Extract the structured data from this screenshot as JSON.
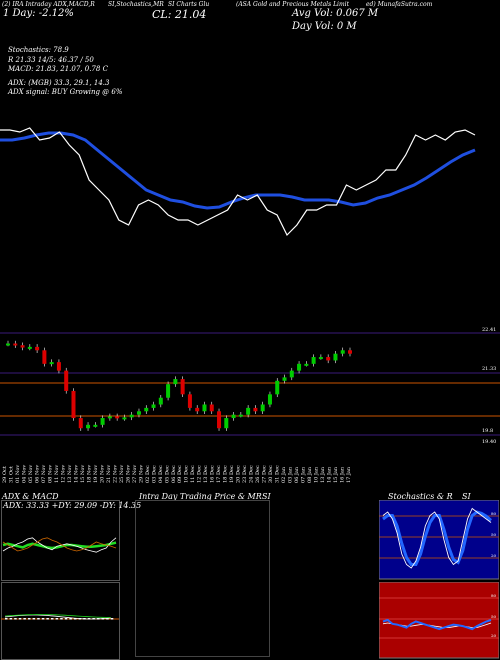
{
  "header": {
    "line1_left": "(2) IRA Intraday ADX,MACD,R",
    "line1_mid": "SI,Stochastics,MR",
    "line1_mid2": "SI Charts Glu",
    "line1_right": "(ASA Gold and Precious Metals Limit",
    "line1_far": "ed) MunafaSutra.com",
    "day_change": "1 Day: -2.12%",
    "close": "CL: 21.04",
    "avg_vol": "Avg Vol: 0.067 M",
    "day_vol": "Day Vol: 0  M"
  },
  "indicators": {
    "stoch": "Stochastics: 78.9",
    "r": "R                      21.33 14/5: 46.37 / 50",
    "macd": "MACD: 21.83, 21.07, 0.78  C",
    "adx": "ADX:                              (MGB) 33.3,  29.1,  14.3",
    "adx_signal": "ADX  signal:                                   BUY Growing @ 6%"
  },
  "price_axis": {
    "top": "22.41",
    "mid": "21.33",
    "low": "19.8",
    "bottom": "19.40"
  },
  "dates": [
    "29 Oct",
    "31 Oct",
    "01 Nov",
    "04 Nov",
    "05 Nov",
    "06 Nov",
    "07 Nov",
    "08 Nov",
    "11 Nov",
    "12 Nov",
    "13 Nov",
    "14 Nov",
    "15 Nov",
    "18 Nov",
    "19 Nov",
    "20 Nov",
    "21 Nov",
    "22 Nov",
    "25 Nov",
    "26 Nov",
    "27 Nov",
    "29 Nov",
    "02 Dec",
    "03 Dec",
    "04 Dec",
    "05 Dec",
    "06 Dec",
    "09 Dec",
    "10 Dec",
    "11 Dec",
    "12 Dec",
    "13 Dec",
    "16 Dec",
    "17 Dec",
    "18 Dec",
    "19 Dec",
    "20 Dec",
    "23 Dec",
    "24 Dec",
    "26 Dec",
    "27 Dec",
    "30 Dec",
    "31 Dec",
    "02 Jan",
    "03 Jan",
    "06 Jan",
    "07 Jan",
    "08 Jan",
    "10 Jan",
    "13 Jan",
    "14 Jan",
    "15 Jan",
    "16 Jan",
    "17 Jan"
  ],
  "panels": {
    "adx_title": "ADX  & MACD",
    "adx_values": "ADX: 33.33  +DY: 29.09 -DY: 14.35",
    "intraday_title": "Intra  Day Trading Price  & MR",
    "intraday_si": "SI",
    "stoch_title": "Stochastics  & R",
    "stoch_si": "SI",
    "stoch_levels": [
      "80",
      "50",
      "20"
    ],
    "rsi_levels": [
      "80",
      "50",
      "20"
    ]
  },
  "colors": {
    "price_line": "#ffffff",
    "ma_line": "#1f4fe0",
    "candle_up": "#00cc00",
    "candle_down": "#dd0000",
    "rsi_bg": "#aa0000",
    "stoch_bg": "#00008b"
  },
  "chart_data": [
    {
      "type": "line",
      "panel": "price_and_moving_average",
      "series": [
        {
          "values": [
            21.7,
            21.7,
            21.68,
            21.72,
            21.6,
            21.62,
            21.68,
            21.55,
            21.45,
            21.2,
            21.1,
            21.0,
            20.8,
            20.75,
            20.95,
            21.0,
            20.95,
            20.85,
            20.8,
            20.8,
            20.75,
            20.8,
            20.85,
            20.9,
            21.05,
            21.0,
            21.05,
            20.9,
            20.85,
            20.65,
            20.75,
            20.9,
            20.9,
            20.95,
            20.95,
            21.15,
            21.1,
            21.15,
            21.2,
            21.3,
            21.3,
            21.45,
            21.65,
            21.6,
            21.65,
            21.6,
            21.68,
            21.7,
            21.65
          ]
        },
        {
          "values": [
            21.6,
            21.6,
            21.62,
            21.65,
            21.67,
            21.67,
            21.65,
            21.6,
            21.5,
            21.4,
            21.3,
            21.2,
            21.1,
            21.05,
            21.0,
            20.98,
            20.94,
            20.92,
            20.93,
            20.98,
            21.02,
            21.05,
            21.05,
            21.05,
            21.03,
            21.0,
            21.0,
            21.0,
            20.98,
            20.95,
            20.97,
            21.02,
            21.05,
            21.1,
            21.15,
            21.22,
            21.3,
            21.38,
            21.45,
            21.5
          ]
        }
      ]
    },
    {
      "type": "candlestick",
      "panel": "daily_candles",
      "ylim": [
        19.4,
        22.41
      ],
      "values": [
        22.1,
        22.05,
        21.98,
        22.0,
        21.9,
        21.5,
        21.55,
        21.3,
        20.7,
        19.9,
        19.6,
        19.7,
        19.7,
        19.9,
        19.95,
        19.9,
        19.92,
        20.0,
        20.1,
        20.2,
        20.3,
        20.5,
        20.9,
        21.05,
        20.6,
        20.2,
        20.1,
        20.3,
        20.1,
        19.6,
        19.9,
        20.0,
        20.0,
        20.2,
        20.1,
        20.3,
        20.6,
        21.0,
        21.1,
        21.3,
        21.5,
        21.5,
        21.7,
        21.7,
        21.6,
        21.8,
        21.9,
        21.8
      ]
    },
    {
      "type": "line",
      "panel": "adx",
      "series": [
        {
          "values": [
            0.4,
            0.45,
            0.48,
            0.52,
            0.55,
            0.6,
            0.62,
            0.55,
            0.5,
            0.45,
            0.42,
            0.48,
            0.5,
            0.52,
            0.5,
            0.48,
            0.45,
            0.42,
            0.4,
            0.38,
            0.42,
            0.45,
            0.55,
            0.62
          ]
        },
        {
          "values": [
            0.55,
            0.5,
            0.45,
            0.4,
            0.42,
            0.45,
            0.5,
            0.55,
            0.6,
            0.62,
            0.58,
            0.55,
            0.5,
            0.45,
            0.42,
            0.4,
            0.42,
            0.45,
            0.5,
            0.55,
            0.52,
            0.5,
            0.48,
            0.45
          ]
        },
        {
          "values": [
            0.5,
            0.52,
            0.5,
            0.48,
            0.46,
            0.5,
            0.52,
            0.5,
            0.48,
            0.46,
            0.45,
            0.46,
            0.48,
            0.5,
            0.5,
            0.49,
            0.48,
            0.47,
            0.47,
            0.48,
            0.49,
            0.5,
            0.52,
            0.54
          ]
        }
      ]
    },
    {
      "type": "line",
      "panel": "stochastics",
      "ylim": [
        0,
        100
      ],
      "series": [
        {
          "values": [
            85,
            90,
            80,
            60,
            30,
            15,
            10,
            20,
            40,
            70,
            85,
            90,
            80,
            50,
            25,
            15,
            20,
            50,
            80,
            95,
            90,
            85,
            80,
            75
          ]
        },
        {
          "values": [
            80,
            85,
            85,
            70,
            45,
            25,
            15,
            15,
            30,
            55,
            75,
            85,
            85,
            65,
            40,
            22,
            18,
            35,
            65,
            85,
            90,
            88,
            84,
            78
          ]
        }
      ]
    },
    {
      "type": "line",
      "panel": "rsi",
      "ylim": [
        0,
        100
      ],
      "series": [
        {
          "values": [
            48,
            50,
            45,
            44,
            42,
            40,
            45,
            48,
            46,
            44,
            42,
            40,
            38,
            40,
            42,
            44,
            43,
            42,
            40,
            38,
            42,
            45,
            48,
            50
          ]
        },
        {
          "values": [
            45,
            46,
            45,
            44,
            43,
            42,
            42,
            43,
            44,
            44,
            43,
            42,
            41,
            40,
            40,
            41,
            42,
            42,
            41,
            40,
            40,
            42,
            44,
            46
          ]
        }
      ]
    }
  ]
}
